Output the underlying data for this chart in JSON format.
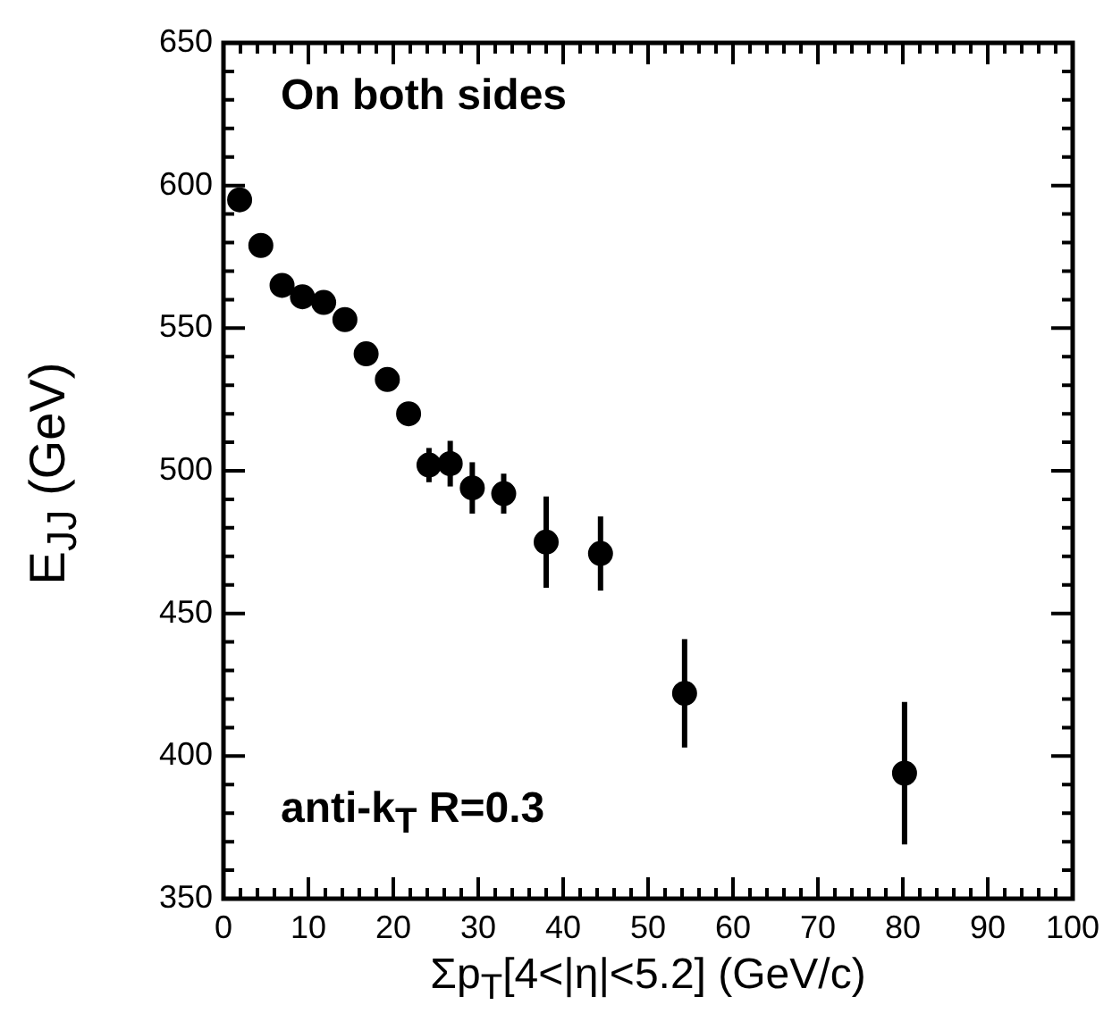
{
  "chart_data": {
    "type": "scatter",
    "xlabel": "Σp$_{T}$[4<|η|<5.2] (GeV/c)",
    "ylabel": "E$_{JJ}$ (GeV)",
    "annotations": [
      "On both sides",
      "anti-k$_{T}$ R=0.3"
    ],
    "x": [
      1.9,
      4.4,
      6.9,
      9.3,
      11.8,
      14.3,
      16.8,
      19.3,
      21.8,
      24.2,
      26.7,
      29.3,
      33,
      38,
      44.4,
      54.3,
      80.2
    ],
    "series": [
      {
        "color": "#000000",
        "values": [
          595,
          579,
          565,
          561,
          559,
          553,
          541,
          532,
          520,
          502,
          502.5,
          494,
          492,
          475,
          471,
          422,
          394
        ],
        "errors": [
          null,
          null,
          null,
          null,
          null,
          null,
          null,
          null,
          3,
          6,
          8,
          9,
          7,
          16,
          13,
          19,
          25
        ]
      }
    ],
    "marker": "circle",
    "grid": false,
    "legend": false,
    "xlim": [
      0,
      100
    ],
    "ylim": [
      350,
      650
    ],
    "xticks": [
      0,
      {
        "value": 2,
        "label": null
      },
      {
        "value": 4,
        "label": null
      },
      {
        "value": 6,
        "label": null
      },
      {
        "value": 8,
        "label": null
      },
      10,
      {
        "value": 12,
        "label": null
      },
      {
        "value": 14,
        "label": null
      },
      {
        "value": 16,
        "label": null
      },
      {
        "value": 18,
        "label": null
      },
      20,
      {
        "value": 22,
        "label": null
      },
      {
        "value": 24,
        "label": null
      },
      {
        "value": 26,
        "label": null
      },
      {
        "value": 28,
        "label": null
      },
      30,
      {
        "value": 32,
        "label": null
      },
      {
        "value": 34,
        "label": null
      },
      {
        "value": 36,
        "label": null
      },
      {
        "value": 38,
        "label": null
      },
      40,
      {
        "value": 42,
        "label": null
      },
      {
        "value": 44,
        "label": null
      },
      {
        "value": 46,
        "label": null
      },
      {
        "value": 48,
        "label": null
      },
      50,
      {
        "value": 52,
        "label": null
      },
      {
        "value": 54,
        "label": null
      },
      {
        "value": 56,
        "label": null
      },
      {
        "value": 58,
        "label": null
      },
      60,
      {
        "value": 62,
        "label": null
      },
      {
        "value": 64,
        "label": null
      },
      {
        "value": 66,
        "label": null
      },
      {
        "value": 68,
        "label": null
      },
      70,
      {
        "value": 72,
        "label": null
      },
      {
        "value": 74,
        "label": null
      },
      {
        "value": 76,
        "label": null
      },
      {
        "value": 78,
        "label": null
      },
      80,
      {
        "value": 82,
        "label": null
      },
      {
        "value": 84,
        "label": null
      },
      {
        "value": 86,
        "label": null
      },
      {
        "value": 88,
        "label": null
      },
      90,
      {
        "value": 92,
        "label": null
      },
      {
        "value": 94,
        "label": null
      },
      {
        "value": 96,
        "label": null
      },
      {
        "value": 98,
        "label": null
      },
      100
    ],
    "yticks": [
      350,
      {
        "value": 360,
        "label": null
      },
      {
        "value": 370,
        "label": null
      },
      {
        "value": 380,
        "label": null
      },
      {
        "value": 390,
        "label": null
      },
      400,
      {
        "value": 410,
        "label": null
      },
      {
        "value": 420,
        "label": null
      },
      {
        "value": 430,
        "label": null
      },
      {
        "value": 440,
        "label": null
      },
      450,
      {
        "value": 460,
        "label": null
      },
      {
        "value": 470,
        "label": null
      },
      {
        "value": 480,
        "label": null
      },
      {
        "value": 490,
        "label": null
      },
      500,
      {
        "value": 510,
        "label": null
      },
      {
        "value": 520,
        "label": null
      },
      {
        "value": 530,
        "label": null
      },
      {
        "value": 540,
        "label": null
      },
      550,
      {
        "value": 560,
        "label": null
      },
      {
        "value": 570,
        "label": null
      },
      {
        "value": 580,
        "label": null
      },
      {
        "value": 590,
        "label": null
      },
      600,
      {
        "value": 610,
        "label": null
      },
      {
        "value": 620,
        "label": null
      },
      {
        "value": 630,
        "label": null
      },
      {
        "value": 640,
        "label": null
      },
      650
    ]
  }
}
